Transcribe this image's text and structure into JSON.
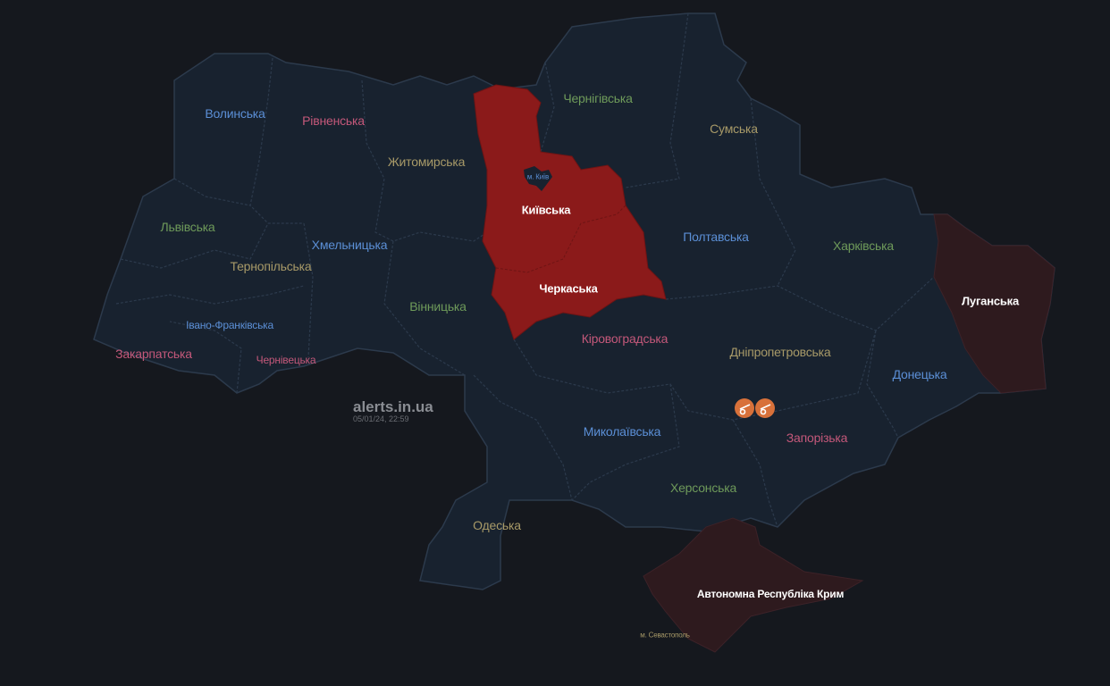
{
  "colors": {
    "background": "#15181e",
    "land": "#18222f",
    "border": "#2c3a4c",
    "air_alert": "#8b1a1a",
    "occupied": "#2e1a1e",
    "artillery_icon": "#d8713a"
  },
  "watermark": {
    "site": "alerts.in.ua",
    "timestamp": "05/01/24, 22:59"
  },
  "regions": [
    {
      "name": "Волинська",
      "color": "#5b8fd6",
      "status": "none"
    },
    {
      "name": "Рівненська",
      "color": "#c4587a",
      "status": "none"
    },
    {
      "name": "Житомирська",
      "color": "#a89a68",
      "status": "none"
    },
    {
      "name": "Чернігівська",
      "color": "#6e9a5a",
      "status": "none"
    },
    {
      "name": "Сумська",
      "color": "#a89a68",
      "status": "none"
    },
    {
      "name": "м. Київ",
      "color": "#5b8fd6",
      "status": "none"
    },
    {
      "name": "Київська",
      "color": "#ffffff",
      "status": "air_alert"
    },
    {
      "name": "Львівська",
      "color": "#6e9a5a",
      "status": "none"
    },
    {
      "name": "Хмельницька",
      "color": "#5b8fd6",
      "status": "none"
    },
    {
      "name": "Тернопільська",
      "color": "#a89a68",
      "status": "none"
    },
    {
      "name": "Полтавська",
      "color": "#5b8fd6",
      "status": "none"
    },
    {
      "name": "Харківська",
      "color": "#6e9a5a",
      "status": "none"
    },
    {
      "name": "Черкаська",
      "color": "#ffffff",
      "status": "air_alert"
    },
    {
      "name": "Луганська",
      "color": "#ffffff",
      "status": "occupied"
    },
    {
      "name": "Вінницька",
      "color": "#6e9a5a",
      "status": "none"
    },
    {
      "name": "Івано-Франківська",
      "color": "#5b8fd6",
      "status": "none"
    },
    {
      "name": "Закарпатська",
      "color": "#c4587a",
      "status": "none"
    },
    {
      "name": "Чернівецька",
      "color": "#c4587a",
      "status": "none"
    },
    {
      "name": "Кіровоградська",
      "color": "#c4587a",
      "status": "none"
    },
    {
      "name": "Дніпропетровська",
      "color": "#a89a68",
      "status": "none"
    },
    {
      "name": "Донецька",
      "color": "#5b8fd6",
      "status": "none"
    },
    {
      "name": "Миколаївська",
      "color": "#5b8fd6",
      "status": "none"
    },
    {
      "name": "Запорізька",
      "color": "#c4587a",
      "status": "none"
    },
    {
      "name": "Херсонська",
      "color": "#6e9a5a",
      "status": "none"
    },
    {
      "name": "Одеська",
      "color": "#a89a68",
      "status": "none"
    },
    {
      "name": "Автономна Республіка Крим",
      "color": "#ffffff",
      "status": "occupied"
    },
    {
      "name": "м. Севастополь",
      "color": "#a89a68",
      "status": "none"
    }
  ],
  "markers": [
    {
      "icon": "artillery-icon",
      "region": "Дніпропетровська"
    },
    {
      "icon": "artillery-icon",
      "region": "Дніпропетровська"
    }
  ]
}
